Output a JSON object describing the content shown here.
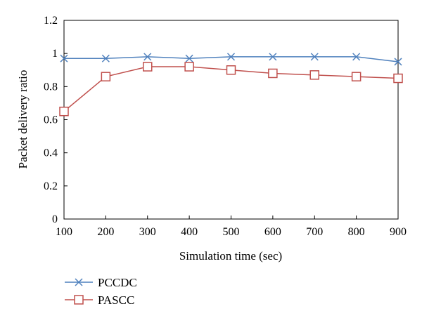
{
  "chart_data": {
    "type": "line",
    "title": "",
    "xlabel": "Simulation time (sec)",
    "ylabel": "Packet delivery ratio",
    "x": [
      100,
      200,
      300,
      400,
      500,
      600,
      700,
      800,
      900
    ],
    "xlim": [
      100,
      900
    ],
    "ylim": [
      0,
      1.2
    ],
    "x_ticks": [
      100,
      200,
      300,
      400,
      500,
      600,
      700,
      800,
      900
    ],
    "y_ticks": [
      0,
      0.2,
      0.4,
      0.6,
      0.8,
      1,
      1.2
    ],
    "grid": false,
    "legend_position": "bottom-left",
    "series": [
      {
        "name": "PCCDC",
        "marker": "x",
        "color": "#4f81bd",
        "values": [
          0.97,
          0.97,
          0.98,
          0.97,
          0.98,
          0.98,
          0.98,
          0.98,
          0.95
        ]
      },
      {
        "name": "PASCC",
        "marker": "square",
        "color": "#c0504d",
        "values": [
          0.65,
          0.86,
          0.92,
          0.92,
          0.9,
          0.88,
          0.87,
          0.86,
          0.85
        ]
      }
    ]
  }
}
